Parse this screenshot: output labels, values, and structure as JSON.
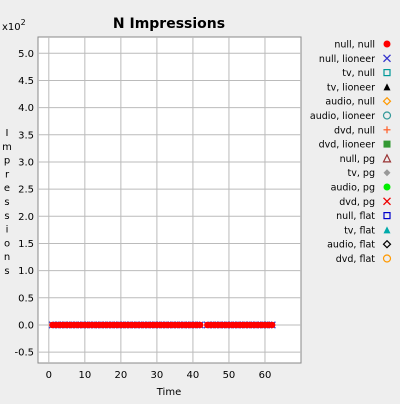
{
  "chart_data": {
    "type": "scatter",
    "title": "N Impressions",
    "xlabel": "Time",
    "ylabel": "Impressions",
    "ylabel_chars": [
      "I",
      "m",
      "p",
      "r",
      "e",
      "s",
      "s",
      "i",
      "o",
      "n",
      "s"
    ],
    "y_multiplier": "x10",
    "y_multiplier_exp": "2",
    "xlim": [
      -3,
      70
    ],
    "ylim": [
      -0.7,
      5.3
    ],
    "xticks": [
      0,
      10,
      20,
      30,
      40,
      50,
      60
    ],
    "yticks": [
      -0.5,
      0.0,
      0.5,
      1.0,
      1.5,
      2.0,
      2.5,
      3.0,
      3.5,
      4.0,
      4.5,
      5.0
    ],
    "xtick_labels": [
      "0",
      "10",
      "20",
      "30",
      "40",
      "50",
      "60"
    ],
    "ytick_labels": [
      "-0.5",
      "0.0",
      "0.5",
      "1.0",
      "1.5",
      "2.0",
      "2.5",
      "3.0",
      "3.5",
      "4.0",
      "4.5",
      "5.0"
    ],
    "grid": true,
    "legend_position": "right",
    "x": [
      1,
      2,
      3,
      4,
      5,
      6,
      7,
      8,
      9,
      10,
      11,
      12,
      13,
      14,
      15,
      16,
      17,
      18,
      19,
      20,
      21,
      22,
      23,
      24,
      25,
      26,
      27,
      28,
      29,
      30,
      31,
      32,
      33,
      34,
      35,
      36,
      37,
      38,
      39,
      40,
      41,
      42,
      44,
      45,
      46,
      47,
      48,
      49,
      50,
      51,
      52,
      53,
      54,
      55,
      56,
      57,
      58,
      59,
      60,
      61,
      62
    ],
    "series": [
      {
        "name": "null, null",
        "marker": "dot",
        "color": "#ff0000",
        "y": 0
      },
      {
        "name": "null, lioneer",
        "marker": "x",
        "color": "#3333cc",
        "y": 0
      },
      {
        "name": "tv, null",
        "marker": "square-open",
        "color": "#009999",
        "y": 0
      },
      {
        "name": "tv, lioneer",
        "marker": "triangle",
        "color": "#000000",
        "y": 0
      },
      {
        "name": "audio, null",
        "marker": "diamond-open",
        "color": "#ff9900",
        "y": 0
      },
      {
        "name": "audio, lioneer",
        "marker": "circle-open",
        "color": "#339999",
        "y": 0
      },
      {
        "name": "dvd, null",
        "marker": "plus",
        "color": "#ff6633",
        "y": 0
      },
      {
        "name": "dvd, lioneer",
        "marker": "square",
        "color": "#339933",
        "y": 0
      },
      {
        "name": "null, pg",
        "marker": "triangle-open",
        "color": "#993333",
        "y": 0
      },
      {
        "name": "tv, pg",
        "marker": "diamond",
        "color": "#999999",
        "y": 0
      },
      {
        "name": "audio, pg",
        "marker": "dot",
        "color": "#00ee00",
        "y": 0
      },
      {
        "name": "dvd, pg",
        "marker": "x",
        "color": "#ee0000",
        "y": 0
      },
      {
        "name": "null, flat",
        "marker": "square-open",
        "color": "#0000cc",
        "y": 0
      },
      {
        "name": "tv, flat",
        "marker": "triangle",
        "color": "#00aaaa",
        "y": 0
      },
      {
        "name": "audio, flat",
        "marker": "diamond-open",
        "color": "#000000",
        "y": 0
      },
      {
        "name": "dvd, flat",
        "marker": "circle-open",
        "color": "#ff9900",
        "y": 0
      }
    ],
    "plot_markers": [
      "null, lioneer",
      "null, null"
    ]
  }
}
